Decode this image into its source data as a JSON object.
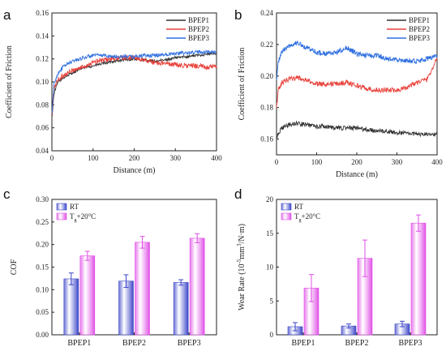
{
  "chart_data": [
    {
      "panel": "a",
      "type": "line",
      "xlabel": "Distance (m)",
      "ylabel": "Coefficient of Friction",
      "xlim": [
        0,
        400
      ],
      "ylim": [
        0.04,
        0.16
      ],
      "xticks": [
        0,
        100,
        200,
        300,
        400
      ],
      "yticks": [
        0.04,
        0.06,
        0.08,
        0.1,
        0.12,
        0.14,
        0.16
      ],
      "ytick_labels": [
        "0.04",
        "0.06",
        "0.08",
        "0.10",
        "0.12",
        "0.14",
        "0.16"
      ],
      "legend": "top-right",
      "series": [
        {
          "name": "BPEP1",
          "color": "#333333",
          "noise": 0.0012,
          "x": [
            0,
            5,
            15,
            30,
            50,
            75,
            100,
            125,
            150,
            175,
            200,
            225,
            250,
            275,
            300,
            325,
            350,
            375,
            400
          ],
          "y": [
            0.068,
            0.09,
            0.1,
            0.104,
            0.108,
            0.112,
            0.114,
            0.116,
            0.118,
            0.119,
            0.12,
            0.119,
            0.118,
            0.119,
            0.121,
            0.122,
            0.123,
            0.124,
            0.125
          ]
        },
        {
          "name": "BPEP2",
          "color": "#e8413a",
          "noise": 0.0022,
          "x": [
            0,
            5,
            15,
            30,
            50,
            75,
            100,
            125,
            150,
            175,
            200,
            225,
            250,
            275,
            300,
            325,
            350,
            375,
            400
          ],
          "y": [
            0.07,
            0.095,
            0.102,
            0.106,
            0.11,
            0.113,
            0.117,
            0.119,
            0.12,
            0.121,
            0.121,
            0.119,
            0.117,
            0.116,
            0.115,
            0.114,
            0.114,
            0.113,
            0.113
          ]
        },
        {
          "name": "BPEP3",
          "color": "#2f6fe0",
          "noise": 0.0016,
          "x": [
            0,
            5,
            15,
            30,
            50,
            75,
            100,
            125,
            150,
            175,
            200,
            225,
            250,
            275,
            300,
            325,
            350,
            375,
            400
          ],
          "y": [
            0.072,
            0.098,
            0.108,
            0.114,
            0.118,
            0.121,
            0.123,
            0.123,
            0.122,
            0.122,
            0.122,
            0.123,
            0.123,
            0.124,
            0.125,
            0.125,
            0.126,
            0.126,
            0.126
          ]
        }
      ]
    },
    {
      "panel": "b",
      "type": "line",
      "xlabel": "Distance (m)",
      "ylabel": "Coefficient of Friction",
      "xlim": [
        0,
        400
      ],
      "ylim": [
        0.15,
        0.24
      ],
      "xticks": [
        0,
        100,
        200,
        300,
        400
      ],
      "yticks": [
        0.16,
        0.18,
        0.2,
        0.22,
        0.24
      ],
      "ytick_labels": [
        "0.16",
        "0.18",
        "0.20",
        "0.22",
        "0.24"
      ],
      "legend": "top-right",
      "series": [
        {
          "name": "BPEP1",
          "color": "#333333",
          "noise": 0.0014,
          "x": [
            0,
            5,
            15,
            30,
            50,
            75,
            100,
            125,
            150,
            175,
            200,
            225,
            250,
            275,
            300,
            325,
            350,
            375,
            400
          ],
          "y": [
            0.16,
            0.164,
            0.167,
            0.169,
            0.17,
            0.169,
            0.168,
            0.168,
            0.167,
            0.167,
            0.167,
            0.166,
            0.165,
            0.165,
            0.164,
            0.164,
            0.163,
            0.163,
            0.163
          ]
        },
        {
          "name": "BPEP2",
          "color": "#e8413a",
          "noise": 0.0016,
          "x": [
            0,
            5,
            15,
            30,
            50,
            75,
            100,
            125,
            150,
            175,
            200,
            225,
            250,
            275,
            300,
            325,
            350,
            375,
            400
          ],
          "y": [
            0.18,
            0.192,
            0.196,
            0.198,
            0.199,
            0.197,
            0.195,
            0.195,
            0.195,
            0.196,
            0.194,
            0.192,
            0.191,
            0.191,
            0.191,
            0.193,
            0.196,
            0.198,
            0.211
          ]
        },
        {
          "name": "BPEP3",
          "color": "#2f6fe0",
          "noise": 0.0016,
          "x": [
            0,
            5,
            15,
            30,
            50,
            75,
            100,
            125,
            150,
            175,
            200,
            225,
            250,
            275,
            300,
            325,
            350,
            375,
            400
          ],
          "y": [
            0.198,
            0.21,
            0.216,
            0.219,
            0.221,
            0.218,
            0.215,
            0.214,
            0.215,
            0.218,
            0.214,
            0.213,
            0.213,
            0.211,
            0.21,
            0.21,
            0.209,
            0.211,
            0.213
          ]
        }
      ]
    },
    {
      "panel": "c",
      "type": "bar",
      "ylabel": "COF",
      "xlabel": "",
      "categories": [
        "BPEP1",
        "BPEP2",
        "BPEP3"
      ],
      "ylim": [
        0,
        0.3
      ],
      "yticks": [
        0,
        0.05,
        0.1,
        0.15,
        0.2,
        0.25,
        0.3
      ],
      "ytick_labels": [
        "0.00",
        "0.05",
        "0.10",
        "0.15",
        "0.20",
        "0.25",
        "0.30"
      ],
      "legend": "top-left",
      "series": [
        {
          "name": "RT",
          "name_sub": "",
          "name_rest": "",
          "color": "#3c46c8",
          "values": [
            0.124,
            0.119,
            0.116
          ],
          "errors": [
            0.013,
            0.014,
            0.006
          ]
        },
        {
          "name": "T",
          "name_sub": "g",
          "name_rest": "+20°C",
          "color": "#e050e6",
          "values": [
            0.175,
            0.205,
            0.214
          ],
          "errors": [
            0.01,
            0.013,
            0.01
          ]
        }
      ]
    },
    {
      "panel": "d",
      "type": "bar",
      "ylabel_parts": [
        "Wear Rate (10",
        "-5",
        "mm",
        "3",
        "/N·m)"
      ],
      "xlabel": "",
      "categories": [
        "BPEP1",
        "BPEP2",
        "BPEP3"
      ],
      "ylim": [
        0,
        20
      ],
      "yticks": [
        0,
        5,
        10,
        15,
        20
      ],
      "ytick_labels": [
        "0",
        "5",
        "10",
        "15",
        "20"
      ],
      "legend": "top-left",
      "series": [
        {
          "name": "RT",
          "name_sub": "",
          "name_rest": "",
          "color": "#3c46c8",
          "values": [
            1.2,
            1.3,
            1.6
          ],
          "errors": [
            0.6,
            0.3,
            0.4
          ]
        },
        {
          "name": "T",
          "name_sub": "g",
          "name_rest": "+20°C",
          "color": "#e050e6",
          "values": [
            6.9,
            11.3,
            16.5
          ],
          "errors": [
            2.0,
            2.7,
            1.2
          ]
        }
      ]
    }
  ],
  "panel_letters": [
    "a",
    "b",
    "c",
    "d"
  ]
}
